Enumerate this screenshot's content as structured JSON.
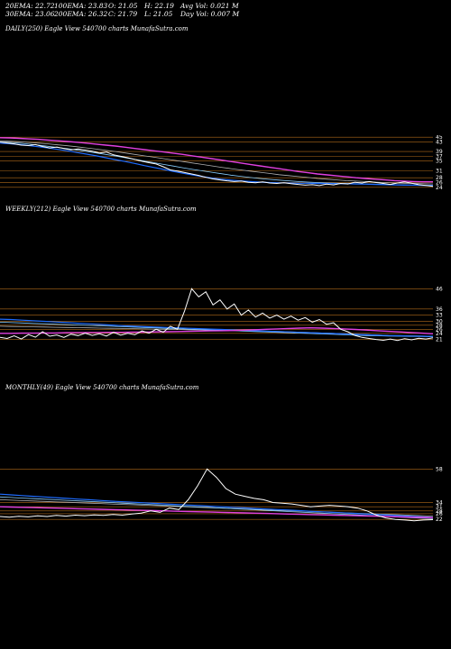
{
  "stats": {
    "ema20": "20EMA: 22.72",
    "ema100": "100EMA: 23.83",
    "open": "O: 21.05",
    "high": "H: 22.19",
    "avg_vol": "Avg Vol: 0.021 M",
    "ema30": "30EMA: 23.06",
    "ema200": "200EMA: 26.32",
    "close": "C: 21.79",
    "low": "L: 21.05",
    "day_vol": "Day Vol: 0.007 M"
  },
  "colors": {
    "background": "#000000",
    "price": "#ffffff",
    "ema_fast": "#1e6cff",
    "ema_mid": "#8ad0ff",
    "ema_slow": "#b0b0b0",
    "ema_200": "#e040e0",
    "bands": "#b06a1a"
  },
  "chart_data": [
    {
      "type": "line",
      "label": "DAILY(250) Eagle  View  540700  charts MunafaSutra.com",
      "y_tick_labels": [
        "45",
        "43",
        "39",
        "37",
        "35",
        "31",
        "28",
        "26",
        "24"
      ],
      "series": [
        {
          "role": "price",
          "values": [
            43,
            42.6,
            42.2,
            41.7,
            41.5,
            41.9,
            41.1,
            40.5,
            40.9,
            40.3,
            39.7,
            40.1,
            39.6,
            39.1,
            38.4,
            38.8,
            37.6,
            37.0,
            36.4,
            35.7,
            34.9,
            34.3,
            33.8,
            32.6,
            31.3,
            30.8,
            30.2,
            29.6,
            29.0,
            28.2,
            27.5,
            27.1,
            26.7,
            26.4,
            26.6,
            26.1,
            25.9,
            26.3,
            25.8,
            25.6,
            25.9,
            25.5,
            25.2,
            24.9,
            25.1,
            24.7,
            25.3,
            25.0,
            25.6,
            25.4,
            26.1,
            25.8,
            26.4,
            26.0,
            25.6,
            25.2,
            25.8,
            26.3,
            25.7,
            25.1,
            24.8,
            24.4
          ]
        },
        {
          "role": "ema_fast",
          "values": [
            42.5,
            42.3,
            41.9,
            41.5,
            41.0,
            40.5,
            39.9,
            39.3,
            38.6,
            37.9,
            37.2,
            36.4,
            35.6,
            34.8,
            34.0,
            33.1,
            32.3,
            31.5,
            30.7,
            29.9,
            29.2,
            28.5,
            27.9,
            27.4,
            27.0,
            26.7,
            26.4,
            26.2,
            26.0,
            25.9,
            25.8,
            25.7,
            25.7,
            25.6,
            25.6,
            25.5,
            25.5,
            25.4,
            25.3,
            25.2,
            25.1,
            25.0,
            24.9,
            24.9,
            24.8,
            24.7
          ]
        },
        {
          "role": "ema_mid",
          "values": [
            43.0,
            42.8,
            42.5,
            42.1,
            41.7,
            41.2,
            40.7,
            40.2,
            39.6,
            39.0,
            38.4,
            37.8,
            37.1,
            36.4,
            35.7,
            35.0,
            34.3,
            33.6,
            32.9,
            32.2,
            31.5,
            30.9,
            30.3,
            29.7,
            29.1,
            28.6,
            28.1,
            27.7,
            27.3,
            27.0,
            26.7,
            26.4,
            26.2,
            26.0,
            25.8,
            25.7,
            25.6,
            25.5,
            25.4,
            25.3,
            25.2,
            25.1,
            25.0,
            24.9,
            24.8,
            24.8
          ]
        },
        {
          "role": "ema_slow",
          "values": [
            43.5,
            43.3,
            43.1,
            42.8,
            42.5,
            42.2,
            41.8,
            41.4,
            41.0,
            40.5,
            40.0,
            39.5,
            39.0,
            38.4,
            37.8,
            37.2,
            36.6,
            36.0,
            35.4,
            34.8,
            34.2,
            33.6,
            33.0,
            32.4,
            31.8,
            31.3,
            30.8,
            30.3,
            29.8,
            29.3,
            28.9,
            28.5,
            28.1,
            27.7,
            27.4,
            27.1,
            26.8,
            26.6,
            26.4,
            26.2,
            26.0,
            25.8,
            25.7,
            25.6,
            25.5,
            25.4
          ]
        },
        {
          "role": "ema_200",
          "values": [
            44.8,
            44.7,
            44.5,
            44.3,
            44.1,
            43.8,
            43.5,
            43.2,
            42.9,
            42.5,
            42.1,
            41.7,
            41.3,
            40.8,
            40.3,
            39.8,
            39.3,
            38.8,
            38.3,
            37.8,
            37.2,
            36.6,
            36.0,
            35.4,
            34.8,
            34.2,
            33.6,
            33.0,
            32.4,
            31.8,
            31.2,
            30.6,
            30.1,
            29.6,
            29.2,
            28.8,
            28.4,
            28.0,
            27.7,
            27.4,
            27.1,
            26.8,
            26.6,
            26.4,
            26.3,
            26.3
          ]
        }
      ]
    },
    {
      "type": "line",
      "label": "WEEKLY(212) Eagle  View  540700  charts MunafaSutra.com",
      "y_tick_labels": [
        "46",
        "36",
        "33",
        "30",
        "28",
        "26",
        "24",
        "21"
      ],
      "series": [
        {
          "role": "price",
          "values": [
            22,
            21.5,
            22.8,
            21.2,
            23.4,
            22.1,
            24.8,
            22.6,
            23.2,
            22.0,
            23.6,
            22.9,
            24.1,
            23.0,
            23.8,
            22.7,
            24.5,
            23.1,
            24.0,
            23.3,
            25.2,
            24.1,
            26.0,
            24.6,
            27.5,
            26.0,
            35.0,
            46.0,
            42.0,
            44.5,
            38.0,
            40.5,
            36.0,
            38.5,
            33.0,
            35.5,
            32.0,
            34.0,
            31.5,
            33.0,
            31.0,
            32.5,
            30.5,
            31.8,
            29.5,
            30.8,
            28.5,
            29.2,
            26.0,
            24.8,
            23.0,
            22.0,
            21.5,
            21.0,
            20.6,
            21.2,
            20.5,
            21.4,
            20.8,
            21.6,
            21.2,
            21.8
          ]
        },
        {
          "role": "ema_fast",
          "values": [
            31.0,
            30.8,
            30.5,
            30.2,
            29.9,
            29.6,
            29.3,
            29.0,
            28.7,
            28.4,
            28.1,
            27.8,
            27.5,
            27.3,
            27.1,
            26.9,
            26.7,
            26.5,
            26.3,
            26.1,
            25.9,
            25.7,
            25.5,
            25.3,
            25.1,
            24.9,
            24.7,
            24.5,
            24.3,
            24.1,
            23.9,
            23.7,
            23.5,
            23.3,
            23.1,
            22.9,
            22.8,
            22.7,
            22.6,
            22.5
          ]
        },
        {
          "role": "ema_mid",
          "values": [
            29.5,
            29.3,
            29.1,
            28.9,
            28.7,
            28.5,
            28.3,
            28.1,
            27.9,
            27.7,
            27.5,
            27.3,
            27.1,
            26.9,
            26.7,
            26.5,
            26.3,
            26.1,
            25.9,
            25.7,
            25.5,
            25.3,
            25.1,
            24.9,
            24.7,
            24.5,
            24.3,
            24.1,
            23.9,
            23.7,
            23.5,
            23.3,
            23.1,
            22.9,
            22.8,
            22.7,
            22.6,
            22.5,
            22.4,
            22.3
          ]
        },
        {
          "role": "ema_slow",
          "values": [
            27.5,
            27.4,
            27.3,
            27.2,
            27.1,
            27.0,
            26.9,
            26.8,
            26.7,
            26.6,
            26.5,
            26.4,
            26.3,
            26.2,
            26.1,
            26.0,
            25.9,
            25.8,
            25.7,
            25.6,
            25.5,
            25.4,
            25.3,
            25.2,
            25.1,
            25.0,
            24.8,
            24.6,
            24.4,
            24.2,
            24.0,
            23.8,
            23.6,
            23.4,
            23.2,
            23.0,
            22.9,
            22.8,
            22.7,
            22.6
          ]
        },
        {
          "role": "ema_200",
          "values": [
            24.0,
            24.0,
            24.1,
            24.1,
            24.2,
            24.2,
            24.3,
            24.3,
            24.4,
            24.4,
            24.5,
            24.5,
            24.6,
            24.6,
            24.7,
            24.8,
            24.9,
            25.0,
            25.1,
            25.2,
            25.3,
            25.4,
            25.6,
            25.8,
            26.0,
            26.2,
            26.4,
            26.6,
            26.7,
            26.6,
            26.4,
            26.2,
            25.9,
            25.6,
            25.3,
            25.0,
            24.7,
            24.4,
            24.1,
            23.8
          ]
        }
      ]
    },
    {
      "type": "line",
      "label": "MONTHLY(49) Eagle  View  540700  charts MunafaSutra.com",
      "y_tick_labels": [
        "58",
        "34",
        "31",
        "28",
        "26",
        "22"
      ],
      "series": [
        {
          "role": "price",
          "values": [
            24,
            23.5,
            24.2,
            23.8,
            24.5,
            24.0,
            24.8,
            24.3,
            25.0,
            24.6,
            25.2,
            24.8,
            25.5,
            25.0,
            25.8,
            26.5,
            28.0,
            27.0,
            30.0,
            29.0,
            36.0,
            46.0,
            58.0,
            52.0,
            44.0,
            40.0,
            38.5,
            37.0,
            36.0,
            34.0,
            33.5,
            33.0,
            32.0,
            31.0,
            31.5,
            32.0,
            31.5,
            31.0,
            30.0,
            28.0,
            25.0,
            23.0,
            22.0,
            21.5,
            21.0,
            21.5,
            21.8
          ]
        },
        {
          "role": "ema_fast",
          "values": [
            40.0,
            39.5,
            39.0,
            38.5,
            38.0,
            37.5,
            37.0,
            36.5,
            36.0,
            35.5,
            35.0,
            34.6,
            34.2,
            33.8,
            33.4,
            33.0,
            32.6,
            32.2,
            31.8,
            31.4,
            31.0,
            30.6,
            30.2,
            29.8,
            29.4,
            29.0,
            28.6,
            28.2,
            27.8,
            27.4,
            27.0,
            26.6,
            26.2,
            25.8,
            25.4,
            25.0,
            24.6,
            24.2,
            23.8,
            23.4
          ]
        },
        {
          "role": "ema_mid",
          "values": [
            38.0,
            37.6,
            37.2,
            36.8,
            36.4,
            36.0,
            35.6,
            35.2,
            34.8,
            34.4,
            34.0,
            33.6,
            33.2,
            32.8,
            32.4,
            32.0,
            31.6,
            31.2,
            30.8,
            30.4,
            30.0,
            29.6,
            29.2,
            28.8,
            28.4,
            28.0,
            27.6,
            27.2,
            26.8,
            26.4,
            26.0,
            25.6,
            25.2,
            24.8,
            24.4,
            24.0,
            23.6,
            23.2,
            22.9,
            22.6
          ]
        },
        {
          "role": "ema_slow",
          "values": [
            36.0,
            35.7,
            35.4,
            35.1,
            34.8,
            34.5,
            34.2,
            33.9,
            33.6,
            33.3,
            33.0,
            32.7,
            32.4,
            32.1,
            31.8,
            31.5,
            31.2,
            30.9,
            30.6,
            30.3,
            30.0,
            29.7,
            29.4,
            29.1,
            28.8,
            28.5,
            28.2,
            27.9,
            27.6,
            27.3,
            27.0,
            26.7,
            26.4,
            26.1,
            25.8,
            25.5,
            25.2,
            24.9,
            24.6,
            24.3
          ]
        },
        {
          "role": "ema_200",
          "values": [
            31.0,
            30.8,
            30.6,
            30.4,
            30.2,
            30.0,
            29.8,
            29.6,
            29.4,
            29.2,
            29.0,
            28.8,
            28.6,
            28.4,
            28.2,
            28.0,
            27.8,
            27.6,
            27.4,
            27.2,
            27.0,
            26.8,
            26.6,
            26.4,
            26.2,
            26.0,
            25.8,
            25.6,
            25.4,
            25.2,
            25.0,
            24.8,
            24.6,
            24.4,
            24.2,
            24.0,
            23.8,
            23.6,
            23.4,
            23.2
          ]
        }
      ]
    }
  ]
}
